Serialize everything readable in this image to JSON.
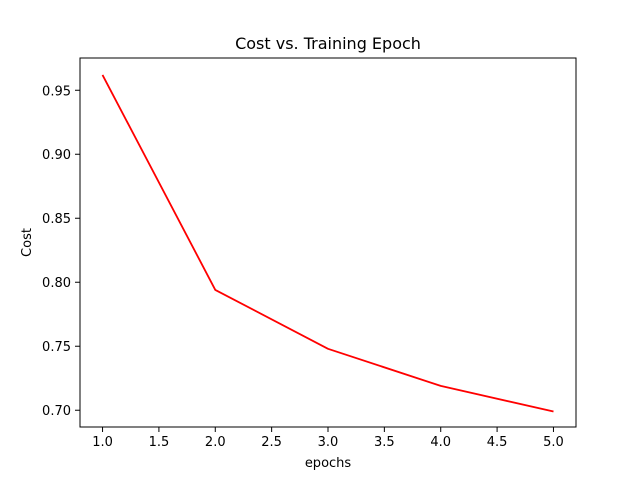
{
  "chart_data": {
    "type": "line",
    "title": "Cost vs. Training Epoch",
    "xlabel": "epochs",
    "ylabel": "Cost",
    "x": [
      1.0,
      2.0,
      3.0,
      4.0,
      5.0
    ],
    "series": [
      {
        "color": "#ff0000",
        "values": [
          0.962,
          0.794,
          0.748,
          0.719,
          0.699
        ]
      }
    ],
    "xlim": [
      0.8,
      5.2
    ],
    "ylim": [
      0.6869,
      0.9752
    ],
    "xticks": [
      1.0,
      1.5,
      2.0,
      2.5,
      3.0,
      3.5,
      4.0,
      4.5,
      5.0
    ],
    "xtick_labels": [
      "1.0",
      "1.5",
      "2.0",
      "2.5",
      "3.0",
      "3.5",
      "4.0",
      "4.5",
      "5.0"
    ],
    "yticks": [
      0.7,
      0.75,
      0.8,
      0.85,
      0.9,
      0.95
    ],
    "ytick_labels": [
      "0.70",
      "0.75",
      "0.80",
      "0.85",
      "0.90",
      "0.95"
    ],
    "grid": false,
    "legend": "none"
  }
}
